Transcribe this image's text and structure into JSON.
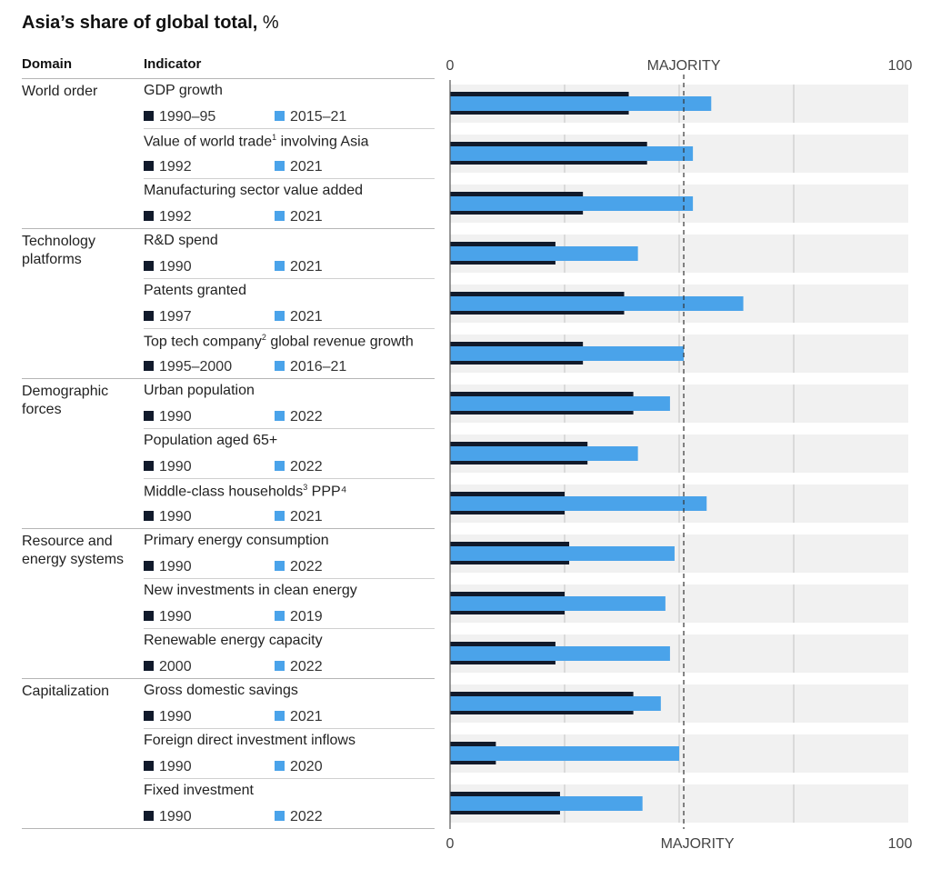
{
  "title_bold": "Asia’s share of global total,",
  "title_unit": " %",
  "headers": {
    "domain": "Domain",
    "indicator": "Indicator"
  },
  "axis": {
    "min_label": "0",
    "max_label": "100",
    "marker_label": "MAJORITY"
  },
  "colors": {
    "early": "#111a2b",
    "late": "#4aa3ea",
    "track": "#f1f1f1",
    "grid": "#c4c4c4"
  },
  "chart_data": {
    "type": "bar",
    "orientation": "horizontal",
    "xlim": [
      0,
      100
    ],
    "reference_line": {
      "value": 51,
      "label": "MAJORITY"
    },
    "rows": [
      {
        "domain": "World order",
        "indicator": "GDP growth",
        "sup": "",
        "indicator_tail": "",
        "early_label": "1990–95",
        "late_label": "2015–21",
        "early": 39,
        "late": 57,
        "domain_start": true
      },
      {
        "domain": "",
        "indicator": "Value of world trade",
        "sup": "1",
        "indicator_tail": " involving Asia",
        "early_label": "1992",
        "late_label": "2021",
        "early": 43,
        "late": 53,
        "domain_start": false
      },
      {
        "domain": "",
        "indicator": "Manufacturing sector value added",
        "sup": "",
        "indicator_tail": "",
        "early_label": "1992",
        "late_label": "2021",
        "early": 29,
        "late": 53,
        "domain_start": false
      },
      {
        "domain": "Technology platforms",
        "indicator": "R&D spend",
        "sup": "",
        "indicator_tail": "",
        "early_label": "1990",
        "late_label": "2021",
        "early": 23,
        "late": 41,
        "domain_start": true
      },
      {
        "domain": "",
        "indicator": "Patents granted",
        "sup": "",
        "indicator_tail": "",
        "early_label": "1997",
        "late_label": "2021",
        "early": 38,
        "late": 64,
        "domain_start": false
      },
      {
        "domain": "",
        "indicator": "Top tech company",
        "sup": "2",
        "indicator_tail": " global revenue growth",
        "early_label": "1995–2000",
        "late_label": "2016–21",
        "early": 29,
        "late": 51,
        "domain_start": false
      },
      {
        "domain": "Demographic forces",
        "indicator": "Urban population",
        "sup": "",
        "indicator_tail": "",
        "early_label": "1990",
        "late_label": "2022",
        "early": 40,
        "late": 48,
        "domain_start": true
      },
      {
        "domain": "",
        "indicator": "Population aged 65+",
        "sup": "",
        "indicator_tail": "",
        "early_label": "1990",
        "late_label": "2022",
        "early": 30,
        "late": 41,
        "domain_start": false
      },
      {
        "domain": "",
        "indicator": "Middle-class households",
        "sup": "3",
        "indicator_tail": " PPP⁴",
        "early_label": "1990",
        "late_label": "2021",
        "early": 25,
        "late": 56,
        "domain_start": false
      },
      {
        "domain": "Resource and energy systems",
        "indicator": "Primary energy consumption",
        "sup": "",
        "indicator_tail": "",
        "early_label": "1990",
        "late_label": "2022",
        "early": 26,
        "late": 49,
        "domain_start": true
      },
      {
        "domain": "",
        "indicator": "New investments in clean energy",
        "sup": "",
        "indicator_tail": "",
        "early_label": "1990",
        "late_label": "2019",
        "early": 25,
        "late": 47,
        "domain_start": false
      },
      {
        "domain": "",
        "indicator": "Renewable energy capacity",
        "sup": "",
        "indicator_tail": "",
        "early_label": "2000",
        "late_label": "2022",
        "early": 23,
        "late": 48,
        "domain_start": false
      },
      {
        "domain": "Capitalization",
        "indicator": "Gross domestic savings",
        "sup": "",
        "indicator_tail": "",
        "early_label": "1990",
        "late_label": "2021",
        "early": 40,
        "late": 46,
        "domain_start": true
      },
      {
        "domain": "",
        "indicator": "Foreign direct investment inflows",
        "sup": "",
        "indicator_tail": "",
        "early_label": "1990",
        "late_label": "2020",
        "early": 10,
        "late": 50,
        "domain_start": false
      },
      {
        "domain": "",
        "indicator": "Fixed investment",
        "sup": "",
        "indicator_tail": "",
        "early_label": "1990",
        "late_label": "2022",
        "early": 24,
        "late": 42,
        "domain_start": false
      }
    ]
  }
}
